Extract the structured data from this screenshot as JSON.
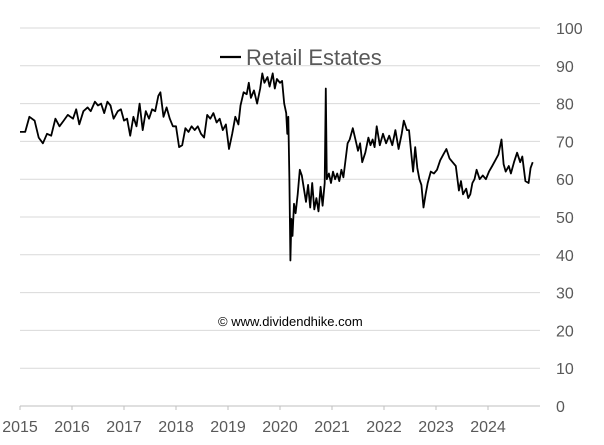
{
  "watermark": "© www.dividendhike.com",
  "colors": {
    "line": "#000000",
    "grid": "#d9d9d9",
    "axis": "#bfbfbf",
    "text": "#595959"
  },
  "chart_data": {
    "type": "line",
    "title": "",
    "xlabel": "",
    "ylabel": "",
    "xlim": [
      2015.0,
      2025.0
    ],
    "ylim": [
      0,
      100
    ],
    "x_tick_labels": [
      "2015",
      "2016",
      "2017",
      "2018",
      "2019",
      "2020",
      "2021",
      "2022",
      "2023",
      "2024"
    ],
    "y_tick_labels": [
      "0",
      "10",
      "20",
      "30",
      "40",
      "50",
      "60",
      "70",
      "80",
      "90",
      "100"
    ],
    "grid": "horizontal",
    "y_axis_side": "right",
    "legend_position": "top-center",
    "series": [
      {
        "name": "Retail Estates",
        "points": [
          [
            2015.0,
            72.5
          ],
          [
            2015.1,
            72.5
          ],
          [
            2015.18,
            76.5
          ],
          [
            2015.28,
            75.5
          ],
          [
            2015.36,
            71.0
          ],
          [
            2015.44,
            69.5
          ],
          [
            2015.52,
            72.0
          ],
          [
            2015.6,
            71.5
          ],
          [
            2015.68,
            76.0
          ],
          [
            2015.76,
            74.0
          ],
          [
            2015.84,
            75.5
          ],
          [
            2015.92,
            77.0
          ],
          [
            2016.02,
            76.0
          ],
          [
            2016.08,
            78.5
          ],
          [
            2016.14,
            74.5
          ],
          [
            2016.22,
            78.0
          ],
          [
            2016.3,
            79.0
          ],
          [
            2016.36,
            78.0
          ],
          [
            2016.44,
            80.5
          ],
          [
            2016.5,
            79.5
          ],
          [
            2016.56,
            80.0
          ],
          [
            2016.62,
            77.5
          ],
          [
            2016.68,
            80.5
          ],
          [
            2016.74,
            79.5
          ],
          [
            2016.8,
            76.0
          ],
          [
            2016.88,
            78.0
          ],
          [
            2016.94,
            78.5
          ],
          [
            2017.0,
            75.5
          ],
          [
            2017.06,
            76.0
          ],
          [
            2017.12,
            71.5
          ],
          [
            2017.18,
            76.5
          ],
          [
            2017.24,
            74.0
          ],
          [
            2017.3,
            80.0
          ],
          [
            2017.36,
            73.0
          ],
          [
            2017.42,
            78.0
          ],
          [
            2017.48,
            76.0
          ],
          [
            2017.54,
            78.5
          ],
          [
            2017.6,
            78.0
          ],
          [
            2017.66,
            82.0
          ],
          [
            2017.7,
            83.0
          ],
          [
            2017.76,
            76.5
          ],
          [
            2017.82,
            79.0
          ],
          [
            2017.88,
            76.0
          ],
          [
            2017.94,
            74.0
          ],
          [
            2018.0,
            74.0
          ],
          [
            2018.06,
            68.5
          ],
          [
            2018.12,
            69.0
          ],
          [
            2018.18,
            73.5
          ],
          [
            2018.24,
            72.5
          ],
          [
            2018.3,
            74.0
          ],
          [
            2018.36,
            73.0
          ],
          [
            2018.42,
            74.0
          ],
          [
            2018.48,
            72.0
          ],
          [
            2018.54,
            71.0
          ],
          [
            2018.6,
            77.0
          ],
          [
            2018.66,
            76.0
          ],
          [
            2018.72,
            77.5
          ],
          [
            2018.78,
            75.0
          ],
          [
            2018.84,
            76.0
          ],
          [
            2018.9,
            73.0
          ],
          [
            2018.96,
            74.5
          ],
          [
            2019.02,
            68.0
          ],
          [
            2019.08,
            72.0
          ],
          [
            2019.14,
            76.5
          ],
          [
            2019.2,
            74.5
          ],
          [
            2019.24,
            79.5
          ],
          [
            2019.3,
            83.0
          ],
          [
            2019.36,
            82.5
          ],
          [
            2019.4,
            85.5
          ],
          [
            2019.44,
            81.5
          ],
          [
            2019.5,
            83.5
          ],
          [
            2019.56,
            80.0
          ],
          [
            2019.62,
            84.0
          ],
          [
            2019.66,
            88.0
          ],
          [
            2019.7,
            85.5
          ],
          [
            2019.76,
            87.0
          ],
          [
            2019.8,
            84.5
          ],
          [
            2019.86,
            88.0
          ],
          [
            2019.9,
            84.0
          ],
          [
            2019.94,
            86.5
          ],
          [
            2020.0,
            85.5
          ],
          [
            2020.04,
            86.0
          ],
          [
            2020.08,
            80.0
          ],
          [
            2020.12,
            77.5
          ],
          [
            2020.14,
            72.0
          ],
          [
            2020.16,
            76.5
          ],
          [
            2020.18,
            60.0
          ],
          [
            2020.2,
            38.5
          ],
          [
            2020.22,
            49.5
          ],
          [
            2020.24,
            45.0
          ],
          [
            2020.27,
            53.5
          ],
          [
            2020.3,
            51.0
          ],
          [
            2020.34,
            56.0
          ],
          [
            2020.38,
            62.5
          ],
          [
            2020.42,
            61.0
          ],
          [
            2020.46,
            57.5
          ],
          [
            2020.5,
            54.0
          ],
          [
            2020.54,
            58.5
          ],
          [
            2020.58,
            52.5
          ],
          [
            2020.62,
            59.0
          ],
          [
            2020.66,
            52.0
          ],
          [
            2020.7,
            55.0
          ],
          [
            2020.74,
            51.5
          ],
          [
            2020.78,
            58.0
          ],
          [
            2020.82,
            53.0
          ],
          [
            2020.86,
            59.0
          ],
          [
            2020.88,
            84.0
          ],
          [
            2020.9,
            60.0
          ],
          [
            2020.94,
            61.5
          ],
          [
            2020.98,
            59.0
          ],
          [
            2021.02,
            62.0
          ],
          [
            2021.06,
            60.0
          ],
          [
            2021.1,
            61.5
          ],
          [
            2021.14,
            59.5
          ],
          [
            2021.18,
            62.5
          ],
          [
            2021.22,
            60.5
          ],
          [
            2021.26,
            65.0
          ],
          [
            2021.3,
            69.5
          ],
          [
            2021.34,
            70.5
          ],
          [
            2021.4,
            73.5
          ],
          [
            2021.46,
            70.0
          ],
          [
            2021.5,
            67.5
          ],
          [
            2021.54,
            69.5
          ],
          [
            2021.58,
            64.5
          ],
          [
            2021.64,
            67.0
          ],
          [
            2021.7,
            71.0
          ],
          [
            2021.74,
            69.0
          ],
          [
            2021.78,
            70.5
          ],
          [
            2021.82,
            68.5
          ],
          [
            2021.86,
            74.0
          ],
          [
            2021.92,
            69.0
          ],
          [
            2021.98,
            72.0
          ],
          [
            2022.04,
            69.5
          ],
          [
            2022.1,
            71.5
          ],
          [
            2022.16,
            69.0
          ],
          [
            2022.22,
            73.0
          ],
          [
            2022.28,
            68.0
          ],
          [
            2022.34,
            72.0
          ],
          [
            2022.38,
            75.5
          ],
          [
            2022.44,
            73.0
          ],
          [
            2022.48,
            73.0
          ],
          [
            2022.52,
            67.5
          ],
          [
            2022.56,
            62.0
          ],
          [
            2022.6,
            68.5
          ],
          [
            2022.64,
            63.0
          ],
          [
            2022.68,
            60.0
          ],
          [
            2022.72,
            58.5
          ],
          [
            2022.76,
            52.5
          ],
          [
            2022.8,
            56.0
          ],
          [
            2022.84,
            59.0
          ],
          [
            2022.9,
            62.0
          ],
          [
            2022.96,
            61.5
          ],
          [
            2023.02,
            62.5
          ],
          [
            2023.08,
            65.0
          ],
          [
            2023.14,
            66.5
          ],
          [
            2023.2,
            68.0
          ],
          [
            2023.26,
            65.5
          ],
          [
            2023.32,
            64.5
          ],
          [
            2023.38,
            63.5
          ],
          [
            2023.44,
            57.0
          ],
          [
            2023.48,
            59.5
          ],
          [
            2023.52,
            56.0
          ],
          [
            2023.58,
            57.5
          ],
          [
            2023.62,
            55.0
          ],
          [
            2023.66,
            56.0
          ],
          [
            2023.7,
            59.0
          ],
          [
            2023.74,
            60.0
          ],
          [
            2023.78,
            62.5
          ],
          [
            2023.84,
            60.0
          ],
          [
            2023.9,
            61.0
          ],
          [
            2023.96,
            60.0
          ],
          [
            2024.02,
            62.0
          ],
          [
            2024.08,
            63.5
          ],
          [
            2024.14,
            65.0
          ],
          [
            2024.2,
            66.5
          ],
          [
            2024.26,
            70.5
          ],
          [
            2024.3,
            64.0
          ],
          [
            2024.34,
            62.0
          ],
          [
            2024.4,
            63.5
          ],
          [
            2024.44,
            61.5
          ],
          [
            2024.5,
            64.5
          ],
          [
            2024.56,
            67.0
          ],
          [
            2024.62,
            64.5
          ],
          [
            2024.66,
            66.0
          ],
          [
            2024.72,
            59.5
          ],
          [
            2024.78,
            59.0
          ],
          [
            2024.82,
            63.0
          ],
          [
            2024.86,
            64.5
          ]
        ]
      }
    ]
  }
}
